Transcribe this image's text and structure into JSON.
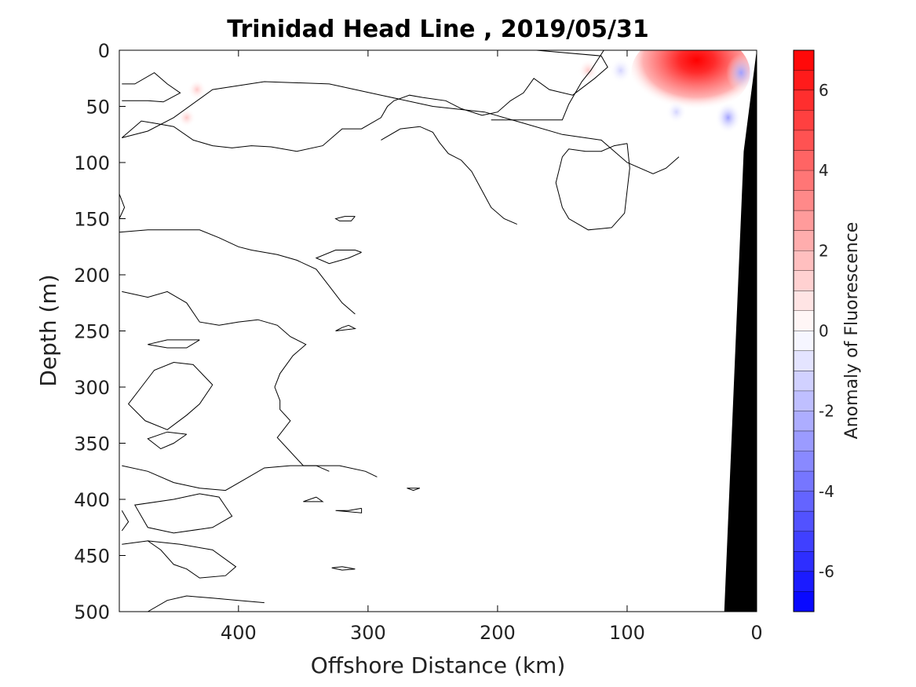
{
  "chart_data": {
    "type": "heatmap",
    "title": "Trinidad Head Line , 2019/05/31",
    "xlabel": "Offshore Distance (km)",
    "ylabel": "Depth (m)",
    "xlim": [
      492,
      0
    ],
    "xticks": [
      400,
      300,
      200,
      100,
      0
    ],
    "ylim": [
      0,
      500
    ],
    "yticks": [
      0,
      50,
      100,
      150,
      200,
      250,
      300,
      350,
      400,
      450,
      500
    ],
    "y_reversed": true,
    "colorbar": {
      "label": "Anomaly of Fluorescence",
      "range": [
        -7,
        7
      ],
      "levels": 28,
      "ticks": [
        6,
        4,
        2,
        0,
        -2,
        -4,
        -6
      ],
      "colormap": "blue-white-red",
      "neg_color": "#0000ff",
      "pos_color": "#ff0000"
    },
    "features": [
      {
        "kind": "positive_anomaly",
        "x": 32,
        "depth": 8,
        "peak": 7.0,
        "x_extent": [
          10,
          92
        ],
        "depth_extent": [
          0,
          48
        ]
      },
      {
        "kind": "positive_anomaly",
        "x": 130,
        "depth": 18,
        "peak": 0.8
      },
      {
        "kind": "positive_anomaly",
        "x": 432,
        "depth": 35,
        "peak": 0.6
      },
      {
        "kind": "positive_anomaly",
        "x": 440,
        "depth": 60,
        "peak": 0.5
      },
      {
        "kind": "negative_anomaly",
        "x": 12,
        "depth": 20,
        "peak": -2.0
      },
      {
        "kind": "negative_anomaly",
        "x": 22,
        "depth": 60,
        "peak": -1.5
      },
      {
        "kind": "negative_anomaly",
        "x": 105,
        "depth": 18,
        "peak": -1.0
      },
      {
        "kind": "negative_anomaly",
        "x": 62,
        "depth": 55,
        "peak": -0.8
      }
    ],
    "contours": [
      [
        [
          490,
          30
        ],
        [
          480,
          30
        ],
        [
          465,
          20
        ],
        [
          455,
          30
        ],
        [
          445,
          38
        ],
        [
          458,
          46
        ],
        [
          470,
          45
        ],
        [
          490,
          45
        ]
      ],
      [
        [
          490,
          78
        ],
        [
          475,
          63
        ],
        [
          465,
          65
        ],
        [
          450,
          68
        ],
        [
          435,
          80
        ],
        [
          420,
          85
        ],
        [
          405,
          87
        ],
        [
          390,
          85
        ],
        [
          375,
          86
        ],
        [
          355,
          90
        ],
        [
          335,
          85
        ],
        [
          320,
          70
        ],
        [
          305,
          70
        ],
        [
          290,
          60
        ],
        [
          285,
          50
        ],
        [
          280,
          45
        ],
        [
          268,
          40
        ],
        [
          258,
          42
        ],
        [
          240,
          45
        ],
        [
          228,
          52
        ],
        [
          212,
          58
        ],
        [
          200,
          55
        ],
        [
          190,
          45
        ],
        [
          180,
          38
        ],
        [
          172,
          25
        ],
        [
          160,
          35
        ],
        [
          142,
          40
        ],
        [
          125,
          25
        ],
        [
          115,
          15
        ],
        [
          120,
          5
        ],
        [
          170,
          0
        ]
      ],
      [
        [
          118,
          0
        ],
        [
          128,
          18
        ],
        [
          135,
          28
        ],
        [
          145,
          48
        ],
        [
          150,
          62
        ],
        [
          168,
          62
        ],
        [
          205,
          62
        ]
      ],
      [
        [
          490,
          215
        ],
        [
          470,
          220
        ],
        [
          455,
          215
        ],
        [
          440,
          225
        ],
        [
          430,
          242
        ],
        [
          415,
          245
        ],
        [
          400,
          242
        ],
        [
          385,
          240
        ],
        [
          370,
          245
        ],
        [
          360,
          255
        ],
        [
          348,
          262
        ],
        [
          358,
          272
        ],
        [
          368,
          288
        ],
        [
          372,
          300
        ],
        [
          368,
          312
        ],
        [
          368,
          320
        ],
        [
          360,
          330
        ],
        [
          370,
          345
        ],
        [
          350,
          370
        ],
        [
          322,
          370
        ],
        [
          302,
          375
        ],
        [
          293,
          380
        ]
      ],
      [
        [
          492,
          128
        ],
        [
          488,
          140
        ],
        [
          492,
          150
        ]
      ],
      [
        [
          492,
          162
        ],
        [
          470,
          160
        ],
        [
          450,
          160
        ],
        [
          430,
          160
        ],
        [
          415,
          167
        ],
        [
          400,
          175
        ],
        [
          390,
          178
        ],
        [
          380,
          180
        ],
        [
          370,
          182
        ],
        [
          355,
          187
        ],
        [
          340,
          195
        ],
        [
          330,
          210
        ],
        [
          320,
          225
        ],
        [
          310,
          235
        ]
      ],
      [
        [
          290,
          80
        ],
        [
          275,
          70
        ],
        [
          260,
          68
        ],
        [
          250,
          73
        ],
        [
          245,
          82
        ],
        [
          238,
          92
        ],
        [
          228,
          98
        ],
        [
          220,
          108
        ],
        [
          212,
          125
        ],
        [
          205,
          140
        ],
        [
          195,
          150
        ],
        [
          185,
          155
        ]
      ],
      [
        [
          100,
          83
        ],
        [
          110,
          85
        ],
        [
          120,
          90
        ],
        [
          132,
          90
        ],
        [
          145,
          88
        ],
        [
          150,
          95
        ],
        [
          155,
          118
        ],
        [
          150,
          140
        ],
        [
          145,
          150
        ],
        [
          130,
          160
        ],
        [
          112,
          158
        ],
        [
          102,
          145
        ],
        [
          100,
          125
        ],
        [
          98,
          105
        ],
        [
          100,
          83
        ]
      ],
      [
        [
          60,
          95
        ],
        [
          70,
          105
        ],
        [
          80,
          110
        ],
        [
          100,
          100
        ],
        [
          120,
          80
        ],
        [
          150,
          75
        ],
        [
          180,
          65
        ],
        [
          210,
          55
        ],
        [
          250,
          50
        ],
        [
          290,
          40
        ],
        [
          330,
          30
        ],
        [
          380,
          28
        ],
        [
          420,
          35
        ],
        [
          450,
          60
        ],
        [
          470,
          72
        ],
        [
          490,
          78
        ]
      ],
      [
        [
          310,
          148
        ],
        [
          313,
          152
        ],
        [
          322,
          152
        ],
        [
          325,
          150
        ],
        [
          318,
          148
        ],
        [
          310,
          148
        ]
      ],
      [
        [
          305,
          180
        ],
        [
          315,
          185
        ],
        [
          330,
          190
        ],
        [
          340,
          185
        ],
        [
          325,
          178
        ],
        [
          310,
          178
        ],
        [
          305,
          180
        ]
      ],
      [
        [
          315,
          245
        ],
        [
          310,
          248
        ],
        [
          325,
          250
        ],
        [
          320,
          247
        ],
        [
          315,
          245
        ]
      ],
      [
        [
          430,
          258
        ],
        [
          440,
          265
        ],
        [
          455,
          265
        ],
        [
          470,
          262
        ],
        [
          455,
          258
        ],
        [
          440,
          258
        ],
        [
          430,
          258
        ]
      ],
      [
        [
          420,
          298
        ],
        [
          435,
          280
        ],
        [
          450,
          278
        ],
        [
          465,
          285
        ],
        [
          475,
          300
        ],
        [
          485,
          315
        ],
        [
          472,
          330
        ],
        [
          455,
          338
        ],
        [
          440,
          325
        ],
        [
          430,
          315
        ],
        [
          420,
          298
        ]
      ],
      [
        [
          440,
          342
        ],
        [
          450,
          350
        ],
        [
          460,
          355
        ],
        [
          470,
          346
        ],
        [
          455,
          340
        ],
        [
          440,
          342
        ]
      ],
      [
        [
          490,
          370
        ],
        [
          470,
          375
        ],
        [
          450,
          385
        ],
        [
          430,
          390
        ],
        [
          410,
          392
        ],
        [
          395,
          382
        ],
        [
          380,
          372
        ],
        [
          360,
          370
        ],
        [
          340,
          370
        ],
        [
          330,
          375
        ]
      ],
      [
        [
          450,
          400
        ],
        [
          480,
          405
        ],
        [
          470,
          425
        ],
        [
          450,
          430
        ],
        [
          420,
          425
        ],
        [
          405,
          415
        ],
        [
          415,
          398
        ],
        [
          430,
          395
        ],
        [
          450,
          400
        ]
      ],
      [
        [
          490,
          410
        ],
        [
          485,
          420
        ],
        [
          490,
          428
        ]
      ],
      [
        [
          490,
          440
        ],
        [
          470,
          437
        ],
        [
          460,
          445
        ],
        [
          450,
          458
        ],
        [
          440,
          462
        ],
        [
          430,
          470
        ],
        [
          410,
          468
        ],
        [
          402,
          460
        ],
        [
          420,
          445
        ],
        [
          445,
          440
        ],
        [
          470,
          437
        ],
        [
          490,
          440
        ]
      ],
      [
        [
          340,
          398
        ],
        [
          345,
          400
        ],
        [
          350,
          402
        ],
        [
          335,
          402
        ],
        [
          340,
          398
        ]
      ],
      [
        [
          305,
          408
        ],
        [
          315,
          410
        ],
        [
          325,
          410
        ],
        [
          305,
          412
        ],
        [
          305,
          408
        ]
      ],
      [
        [
          270,
          390
        ],
        [
          260,
          390
        ],
        [
          265,
          392
        ],
        [
          270,
          390
        ]
      ],
      [
        [
          320,
          460
        ],
        [
          310,
          462
        ],
        [
          320,
          463
        ],
        [
          328,
          461
        ],
        [
          320,
          460
        ]
      ],
      [
        [
          470,
          500
        ],
        [
          455,
          490
        ],
        [
          440,
          486
        ],
        [
          420,
          488
        ],
        [
          400,
          490
        ],
        [
          380,
          492
        ]
      ]
    ],
    "seafloor": {
      "color": "#000000",
      "polygon": [
        [
          0,
          0
        ],
        [
          0,
          500
        ],
        [
          25,
          500
        ],
        [
          10,
          90
        ],
        [
          0,
          0
        ]
      ]
    }
  }
}
